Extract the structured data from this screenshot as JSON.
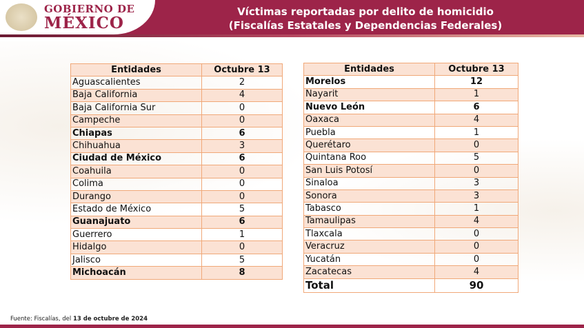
{
  "header": {
    "logo_line1": "GOBIERNO DE",
    "logo_line2": "MÉXICO",
    "title_line1": "Víctimas reportadas por delito de homicidio",
    "title_line2": "(Fiscalías Estatales y Dependencias Federales)"
  },
  "tables": {
    "headers": [
      "Entidades",
      "Octubre 13"
    ],
    "left": [
      {
        "name": "Aguascalientes",
        "value": "2",
        "bold": false
      },
      {
        "name": "Baja California",
        "value": "4",
        "bold": false
      },
      {
        "name": "Baja California Sur",
        "value": "0",
        "bold": false
      },
      {
        "name": "Campeche",
        "value": "0",
        "bold": false
      },
      {
        "name": "Chiapas",
        "value": "6",
        "bold": true
      },
      {
        "name": "Chihuahua",
        "value": "3",
        "bold": false
      },
      {
        "name": "Ciudad de México",
        "value": "6",
        "bold": true
      },
      {
        "name": "Coahuila",
        "value": "0",
        "bold": false
      },
      {
        "name": "Colima",
        "value": "0",
        "bold": false
      },
      {
        "name": "Durango",
        "value": "0",
        "bold": false
      },
      {
        "name": "Estado de México",
        "value": "5",
        "bold": false
      },
      {
        "name": "Guanajuato",
        "value": "6",
        "bold": true
      },
      {
        "name": "Guerrero",
        "value": "1",
        "bold": false
      },
      {
        "name": "Hidalgo",
        "value": "0",
        "bold": false
      },
      {
        "name": "Jalisco",
        "value": "5",
        "bold": false
      },
      {
        "name": "Michoacán",
        "value": "8",
        "bold": true
      }
    ],
    "right": [
      {
        "name": "Morelos",
        "value": "12",
        "bold": true
      },
      {
        "name": "Nayarit",
        "value": "1",
        "bold": false
      },
      {
        "name": "Nuevo León",
        "value": "6",
        "bold": true
      },
      {
        "name": "Oaxaca",
        "value": "4",
        "bold": false
      },
      {
        "name": "Puebla",
        "value": "1",
        "bold": false
      },
      {
        "name": "Querétaro",
        "value": "0",
        "bold": false
      },
      {
        "name": "Quintana Roo",
        "value": "5",
        "bold": false
      },
      {
        "name": "San Luis Potosí",
        "value": "0",
        "bold": false
      },
      {
        "name": "Sinaloa",
        "value": "3",
        "bold": false
      },
      {
        "name": "Sonora",
        "value": "3",
        "bold": false
      },
      {
        "name": "Tabasco",
        "value": "1",
        "bold": false
      },
      {
        "name": "Tamaulipas",
        "value": "4",
        "bold": false
      },
      {
        "name": "Tlaxcala",
        "value": "0",
        "bold": false
      },
      {
        "name": "Veracruz",
        "value": "0",
        "bold": false
      },
      {
        "name": "Yucatán",
        "value": "0",
        "bold": false
      },
      {
        "name": "Zacatecas",
        "value": "4",
        "bold": false
      }
    ],
    "total": {
      "label": "Total",
      "value": "90"
    }
  },
  "footer": {
    "prefix": "Fuente: Fiscalías, del ",
    "date": "13 de octubre de 2024"
  },
  "colors": {
    "brand": "#9d2449",
    "row_alt": "#fbe2d4",
    "border": "#f0a878"
  }
}
